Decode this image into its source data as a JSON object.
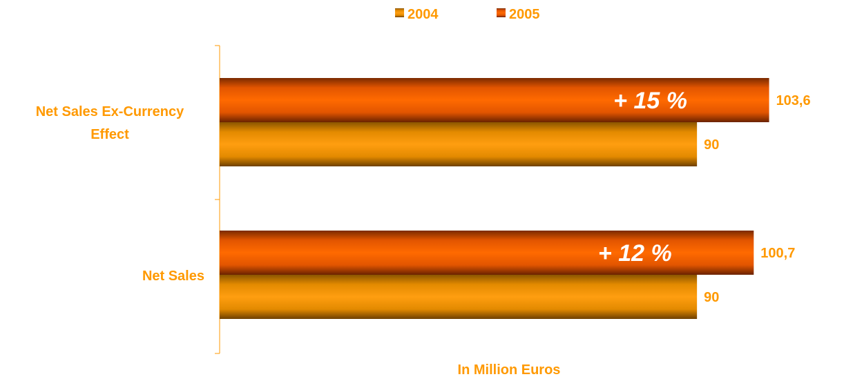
{
  "chart_data": {
    "type": "bar",
    "orientation": "horizontal",
    "categories": [
      "Net Sales Ex-Currency Effect",
      "Net Sales"
    ],
    "series": [
      {
        "name": "2004",
        "values": [
          90,
          90
        ],
        "labels": [
          "90",
          "90"
        ]
      },
      {
        "name": "2005",
        "values": [
          103.6,
          100.7
        ],
        "labels": [
          "103,6",
          "100,7"
        ]
      }
    ],
    "annotations": [
      "+ 15 %",
      "+ 12 %"
    ],
    "xlabel": "In Million Euros",
    "xlim": [
      0,
      106
    ],
    "legend_position": "top-center",
    "grid": false
  },
  "colors": {
    "series_2004": "#ff9900",
    "series_2004_dark": "#7a4a00",
    "series_2005": "#ff6600",
    "series_2005_dark": "#7a2a00",
    "text_accent": "#ff9900",
    "annotation_text": "#ffffff",
    "axis": "#ff9900"
  }
}
